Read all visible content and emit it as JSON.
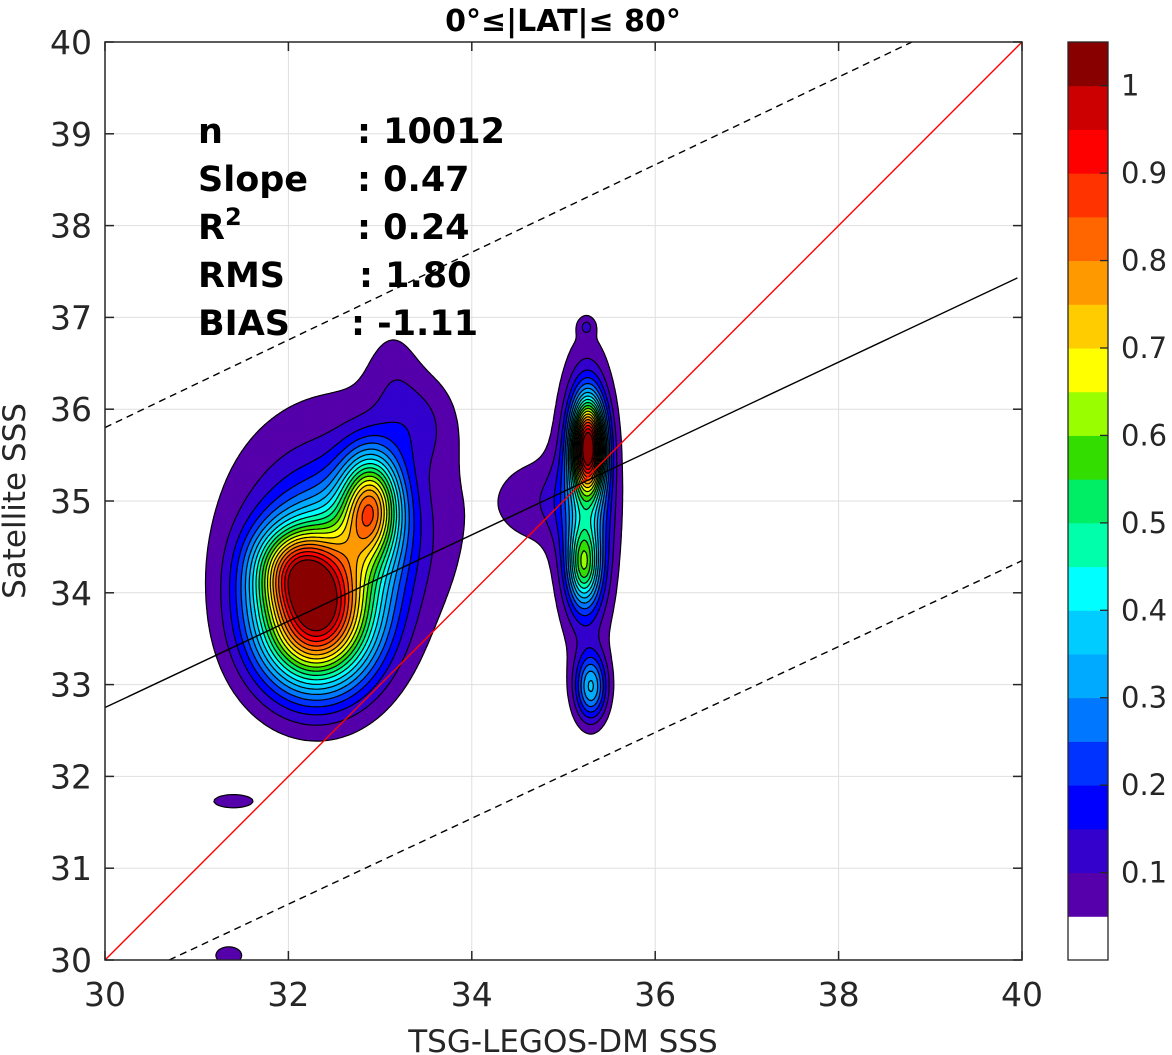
{
  "chart_data": {
    "type": "contour",
    "title": "0°≤|LAT|≤ 80°",
    "xlabel": "TSG-LEGOS-DM SSS",
    "ylabel": "Satellite SSS",
    "xlim": [
      30,
      40
    ],
    "ylim": [
      30,
      40
    ],
    "xticks": [
      "30",
      "32",
      "34",
      "36",
      "38",
      "40"
    ],
    "yticks": [
      "30",
      "31",
      "32",
      "33",
      "34",
      "35",
      "36",
      "37",
      "38",
      "39",
      "40"
    ],
    "grid": true,
    "stats": [
      {
        "label": "n",
        "value": ": 10012"
      },
      {
        "label": "Slope",
        "value": ": 0.47"
      },
      {
        "label": "R",
        "sup": "2",
        "value": ": 0.24"
      },
      {
        "label": "RMS",
        "value": ": 1.80"
      },
      {
        "label": "BIAS",
        "value": ": -1.11"
      }
    ],
    "lines": [
      {
        "name": "one-to-one",
        "color": "#ff0000",
        "x": [
          30,
          40
        ],
        "y": [
          30,
          40
        ]
      },
      {
        "name": "regression",
        "color": "#000000",
        "x": [
          30,
          39.95
        ],
        "y": [
          32.75,
          37.43
        ]
      },
      {
        "name": "upper-bound",
        "color": "#000000",
        "dash": true,
        "x": [
          30,
          38.8
        ],
        "y": [
          35.8,
          40
        ]
      },
      {
        "name": "lower-bound",
        "color": "#000000",
        "dash": true,
        "x": [
          30.7,
          40
        ],
        "y": [
          30,
          34.35
        ]
      }
    ],
    "density_peaks": [
      {
        "x": 32.3,
        "y": 33.75,
        "sx": 0.45,
        "sy": 0.55,
        "amp": 0.95
      },
      {
        "x": 32.05,
        "y": 34.3,
        "sx": 0.3,
        "sy": 0.3,
        "amp": 0.3
      },
      {
        "x": 32.9,
        "y": 34.95,
        "sx": 0.22,
        "sy": 0.4,
        "amp": 0.58
      },
      {
        "x": 32.55,
        "y": 34.6,
        "sx": 0.55,
        "sy": 0.55,
        "amp": 0.22
      },
      {
        "x": 32.6,
        "y": 34.9,
        "sx": 1.0,
        "sy": 1.1,
        "amp": 0.09
      },
      {
        "x": 33.45,
        "y": 35.85,
        "sx": 0.25,
        "sy": 0.35,
        "amp": 0.07
      },
      {
        "x": 33.15,
        "y": 36.3,
        "sx": 0.2,
        "sy": 0.45,
        "amp": 0.05
      },
      {
        "x": 35.27,
        "y": 35.6,
        "sx": 0.12,
        "sy": 0.35,
        "amp": 0.85
      },
      {
        "x": 35.25,
        "y": 35.0,
        "sx": 0.2,
        "sy": 0.95,
        "amp": 0.3
      },
      {
        "x": 35.22,
        "y": 34.3,
        "sx": 0.12,
        "sy": 0.3,
        "amp": 0.38
      },
      {
        "x": 34.8,
        "y": 35.0,
        "sx": 0.35,
        "sy": 0.35,
        "amp": 0.08
      },
      {
        "x": 35.3,
        "y": 32.97,
        "sx": 0.12,
        "sy": 0.25,
        "amp": 0.33
      },
      {
        "x": 31.4,
        "y": 31.73,
        "sx": 0.18,
        "sy": 0.06,
        "amp": 0.1
      },
      {
        "x": 31.35,
        "y": 30.05,
        "sx": 0.12,
        "sy": 0.08,
        "amp": 0.1
      },
      {
        "x": 35.25,
        "y": 36.9,
        "sx": 0.06,
        "sy": 0.07,
        "amp": 0.08
      }
    ],
    "colorbar": {
      "ticks": [
        "0.1",
        "0.2",
        "0.3",
        "0.4",
        "0.5",
        "0.6",
        "0.7",
        "0.8",
        "0.9",
        "1"
      ],
      "levels": [
        0.05,
        0.1,
        0.15,
        0.2,
        0.25,
        0.3,
        0.35,
        0.4,
        0.45,
        0.5,
        0.55,
        0.6,
        0.65,
        0.7,
        0.75,
        0.8,
        0.85,
        0.9,
        0.95,
        1.0
      ],
      "colors": [
        "#ffffff",
        "#5500aa",
        "#3300cc",
        "#0000ff",
        "#0033ff",
        "#0077ff",
        "#00aaff",
        "#00ccff",
        "#00ffff",
        "#00ffaa",
        "#00ee66",
        "#33dd00",
        "#99ff00",
        "#ffff00",
        "#ffcc00",
        "#ff9900",
        "#ff6600",
        "#ff3300",
        "#ff0000",
        "#cc0000",
        "#880000"
      ]
    }
  }
}
